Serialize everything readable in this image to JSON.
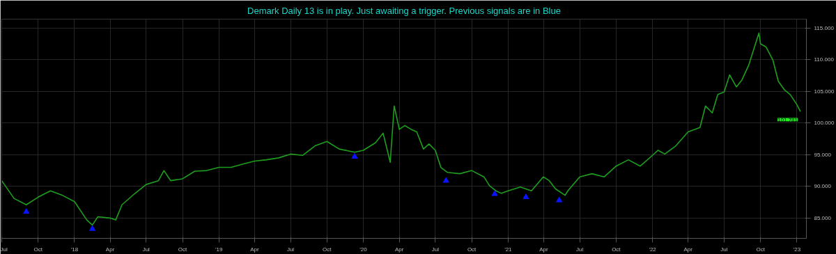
{
  "chart_data": {
    "type": "line",
    "title": "Demark Daily 13 is in play. Just awaiting a trigger. Previous signals are in Blue",
    "x": [
      "2017-07-01",
      "2017-08-01",
      "2017-09-01",
      "2017-10-01",
      "2017-11-01",
      "2017-12-01",
      "2018-01-01",
      "2018-02-01",
      "2018-02-15",
      "2018-03-01",
      "2018-04-01",
      "2018-04-15",
      "2018-05-01",
      "2018-06-01",
      "2018-07-01",
      "2018-08-01",
      "2018-08-15",
      "2018-09-01",
      "2018-10-01",
      "2018-11-01",
      "2018-12-01",
      "2019-01-01",
      "2019-02-01",
      "2019-03-01",
      "2019-04-01",
      "2019-05-01",
      "2019-06-01",
      "2019-07-01",
      "2019-08-01",
      "2019-09-01",
      "2019-10-01",
      "2019-11-01",
      "2019-12-10",
      "2020-01-01",
      "2020-02-01",
      "2020-02-20",
      "2020-03-09",
      "2020-03-19",
      "2020-04-01",
      "2020-04-15",
      "2020-05-01",
      "2020-05-15",
      "2020-06-01",
      "2020-06-15",
      "2020-07-01",
      "2020-07-15",
      "2020-08-01",
      "2020-09-01",
      "2020-10-01",
      "2020-11-01",
      "2020-11-15",
      "2020-12-01",
      "2020-12-15",
      "2021-01-01",
      "2021-02-01",
      "2021-03-01",
      "2021-03-31",
      "2021-04-15",
      "2021-05-01",
      "2021-05-25",
      "2021-06-01",
      "2021-07-01",
      "2021-08-01",
      "2021-09-01",
      "2021-10-01",
      "2021-11-01",
      "2021-12-01",
      "2022-01-01",
      "2022-01-15",
      "2022-02-01",
      "2022-03-01",
      "2022-04-01",
      "2022-05-01",
      "2022-05-15",
      "2022-06-01",
      "2022-06-15",
      "2022-07-01",
      "2022-07-15",
      "2022-08-01",
      "2022-08-15",
      "2022-09-01",
      "2022-09-27",
      "2022-10-01",
      "2022-10-15",
      "2022-11-01",
      "2022-11-15",
      "2022-12-01",
      "2022-12-15",
      "2023-01-01",
      "2023-01-10"
    ],
    "series": [
      {
        "color": "#1e9e1e",
        "values": [
          90.9,
          88.1,
          87.1,
          88.3,
          89.3,
          88.6,
          87.6,
          84.7,
          83.9,
          85.2,
          85.0,
          84.7,
          87.1,
          88.8,
          90.3,
          90.9,
          92.5,
          90.9,
          91.2,
          92.4,
          92.5,
          93.0,
          93.0,
          93.5,
          94.0,
          94.2,
          94.5,
          95.1,
          94.9,
          96.4,
          97.1,
          95.9,
          95.4,
          95.7,
          96.9,
          98.4,
          93.8,
          102.7,
          99.0,
          99.6,
          99.0,
          98.6,
          95.9,
          96.7,
          95.7,
          93.0,
          92.2,
          92.0,
          92.5,
          91.5,
          90.1,
          89.3,
          88.9,
          89.3,
          89.9,
          89.3,
          91.5,
          90.9,
          89.6,
          88.6,
          89.3,
          91.5,
          92.0,
          91.5,
          93.2,
          94.2,
          93.2,
          94.9,
          95.7,
          95.1,
          96.4,
          98.6,
          99.3,
          102.7,
          101.6,
          104.5,
          104.9,
          107.6,
          105.7,
          106.8,
          109.1,
          114.2,
          112.5,
          112.0,
          110.0,
          106.6,
          105.2,
          104.5,
          102.9,
          101.8
        ]
      },
      {
        "type": "scatter",
        "color": "#0a14ff",
        "marker": "triangle",
        "x": [
          "2017-09-01",
          "2018-02-15",
          "2019-12-10",
          "2020-07-28",
          "2020-11-28",
          "2021-02-15",
          "2021-05-10"
        ],
        "values": [
          86.0,
          83.3,
          94.7,
          90.9,
          88.8,
          88.3,
          87.8
        ]
      }
    ],
    "annotations": [
      {
        "text": "101.781",
        "x": "2023-01-10",
        "y": 101.781
      }
    ],
    "xlim": [
      "2017-07-01",
      "2023-01-25"
    ],
    "xticks": [
      {
        "value": "2017-07-01",
        "label": "Jul"
      },
      {
        "value": "2017-10-01",
        "label": "Oct"
      },
      {
        "value": "2018-01-01",
        "label": "'18"
      },
      {
        "value": "2018-04-01",
        "label": "Apr"
      },
      {
        "value": "2018-07-01",
        "label": "Jul"
      },
      {
        "value": "2018-10-01",
        "label": "Oct"
      },
      {
        "value": "2019-01-01",
        "label": "'19"
      },
      {
        "value": "2019-04-01",
        "label": "Apr"
      },
      {
        "value": "2019-07-01",
        "label": "Jul"
      },
      {
        "value": "2019-10-01",
        "label": "Oct"
      },
      {
        "value": "2020-01-01",
        "label": "'20"
      },
      {
        "value": "2020-04-01",
        "label": "Apr"
      },
      {
        "value": "2020-07-01",
        "label": "Jul"
      },
      {
        "value": "2020-10-01",
        "label": "Oct"
      },
      {
        "value": "2021-01-01",
        "label": "'21"
      },
      {
        "value": "2021-04-01",
        "label": "Apr"
      },
      {
        "value": "2021-07-01",
        "label": "Jul"
      },
      {
        "value": "2021-10-01",
        "label": "Oct"
      },
      {
        "value": "2022-01-01",
        "label": "'22"
      },
      {
        "value": "2022-04-01",
        "label": "Apr"
      },
      {
        "value": "2022-07-01",
        "label": "Jul"
      },
      {
        "value": "2022-10-01",
        "label": "Oct"
      },
      {
        "value": "2023-01-01",
        "label": "'23"
      }
    ],
    "ylim": [
      81.8,
      116.4
    ],
    "yticks": [
      {
        "value": 85,
        "label": "85.000"
      },
      {
        "value": 90,
        "label": "90.000"
      },
      {
        "value": 95,
        "label": "95.000"
      },
      {
        "value": 100,
        "label": "100.000"
      },
      {
        "value": 105,
        "label": "105.000"
      },
      {
        "value": 110,
        "label": "110.000"
      },
      {
        "value": 115,
        "label": "115.000"
      }
    ],
    "grid": true
  }
}
